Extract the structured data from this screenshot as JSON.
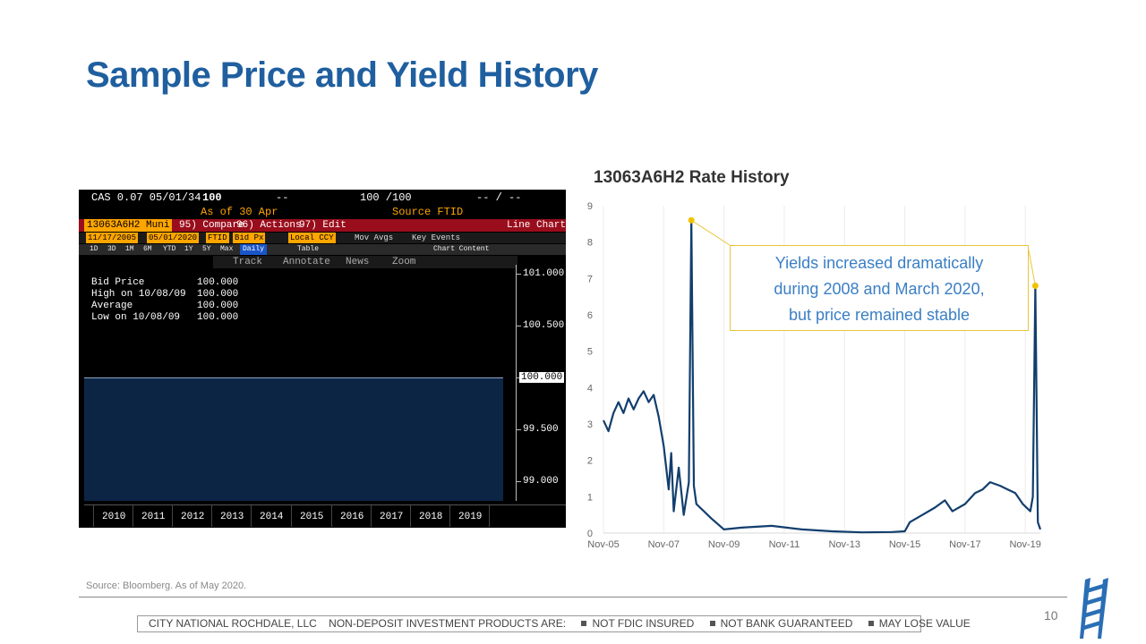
{
  "slide": {
    "title": "Sample Price and Yield History",
    "source": "Source: Bloomberg. As of May 2020.",
    "page_number": "10",
    "disclaimer": {
      "company": "CITY NATIONAL ROCHDALE, LLC",
      "lead": "NON-DEPOSIT INVESTMENT PRODUCTS ARE:",
      "items": [
        "NOT FDIC INSURED",
        "NOT BANK GUARANTEED",
        "MAY LOSE VALUE"
      ]
    },
    "logo_icon": "ladder-logo-icon"
  },
  "bloomberg": {
    "ticker_line": "CAS 0.07 05/01/34",
    "price": "100",
    "dash1": "--",
    "bid_ask": "100 /100",
    "dash2": "-- / --",
    "as_of": "As of 30 Apr",
    "source": "Source FTID",
    "security": "13063A6H2 Muni",
    "compare": "95) Compare",
    "actions": "96) Actions",
    "edit": "97) Edit",
    "chart_type": "Line Chart",
    "start_date": "11/17/2005",
    "end_date": "05/01/2020",
    "pricing_source": "FTID",
    "field": "Bid Px",
    "currency": "Local CCY",
    "mov_avgs": "Mov Avgs",
    "key_events": "Key Events",
    "periods": [
      "1D",
      "3D",
      "1M",
      "6M",
      "YTD",
      "1Y",
      "5Y",
      "Max"
    ],
    "frequency": "Daily",
    "table": "Table",
    "chart_content": "Chart Content",
    "tools": [
      "Track",
      "Annotate",
      "News",
      "Zoom"
    ],
    "legend": [
      {
        "label": "Bid Price",
        "value": "100.000"
      },
      {
        "label": "High on 10/08/09",
        "value": "100.000"
      },
      {
        "label": "Average",
        "value": "100.000"
      },
      {
        "label": "Low on 10/08/09",
        "value": "100.000"
      }
    ],
    "y_ticks": [
      "101.000",
      "100.500",
      "100.000",
      "99.500",
      "99.000"
    ],
    "x_ticks": [
      "2010",
      "2011",
      "2012",
      "2013",
      "2014",
      "2015",
      "2016",
      "2017",
      "2018",
      "2019"
    ]
  },
  "rate_chart_title": "13063A6H2  Rate History",
  "callout": {
    "line1": "Yields increased dramatically",
    "line2": "during 2008 and March 2020,",
    "line3": "but price remained stable"
  },
  "chart_data": {
    "type": "line",
    "title": "13063A6H2  Rate History",
    "x_tick_labels": [
      "Nov-05",
      "Nov-07",
      "Nov-09",
      "Nov-11",
      "Nov-13",
      "Nov-15",
      "Nov-17",
      "Nov-19"
    ],
    "y_tick_labels": [
      "0",
      "1",
      "2",
      "3",
      "4",
      "5",
      "6",
      "7",
      "8",
      "9"
    ],
    "ylim": [
      0,
      9
    ],
    "xlim": [
      "2005-11",
      "2020-05"
    ],
    "grid": "vertical",
    "series": [
      {
        "color": "#123e6e",
        "points": [
          [
            "2005-11",
            3.1
          ],
          [
            "2006-01",
            2.8
          ],
          [
            "2006-03",
            3.3
          ],
          [
            "2006-05",
            3.6
          ],
          [
            "2006-07",
            3.3
          ],
          [
            "2006-09",
            3.7
          ],
          [
            "2006-11",
            3.4
          ],
          [
            "2007-01",
            3.7
          ],
          [
            "2007-03",
            3.9
          ],
          [
            "2007-05",
            3.6
          ],
          [
            "2007-07",
            3.8
          ],
          [
            "2007-09",
            3.2
          ],
          [
            "2007-11",
            2.4
          ],
          [
            "2008-01",
            1.2
          ],
          [
            "2008-02",
            2.2
          ],
          [
            "2008-03",
            0.6
          ],
          [
            "2008-05",
            1.8
          ],
          [
            "2008-07",
            0.5
          ],
          [
            "2008-09",
            1.4
          ],
          [
            "2008-10",
            8.6
          ],
          [
            "2008-11",
            1.3
          ],
          [
            "2008-12",
            0.8
          ],
          [
            "2009-06",
            0.4
          ],
          [
            "2009-11",
            0.1
          ],
          [
            "2010-06",
            0.15
          ],
          [
            "2011-06",
            0.2
          ],
          [
            "2012-06",
            0.1
          ],
          [
            "2013-06",
            0.05
          ],
          [
            "2014-06",
            0.02
          ],
          [
            "2015-06",
            0.03
          ],
          [
            "2015-11",
            0.05
          ],
          [
            "2016-01",
            0.3
          ],
          [
            "2016-06",
            0.5
          ],
          [
            "2016-11",
            0.7
          ],
          [
            "2017-03",
            0.9
          ],
          [
            "2017-06",
            0.6
          ],
          [
            "2017-11",
            0.8
          ],
          [
            "2018-03",
            1.1
          ],
          [
            "2018-06",
            1.2
          ],
          [
            "2018-09",
            1.4
          ],
          [
            "2019-01",
            1.3
          ],
          [
            "2019-04",
            1.2
          ],
          [
            "2019-07",
            1.1
          ],
          [
            "2019-10",
            0.8
          ],
          [
            "2020-01",
            0.6
          ],
          [
            "2020-02",
            1.0
          ],
          [
            "2020-03",
            6.8
          ],
          [
            "2020-04",
            0.3
          ],
          [
            "2020-05",
            0.1
          ]
        ]
      }
    ],
    "highlight_points": [
      [
        "2008-10",
        8.6
      ],
      [
        "2020-03",
        6.8
      ]
    ],
    "highlight_color": "#f2c200"
  }
}
